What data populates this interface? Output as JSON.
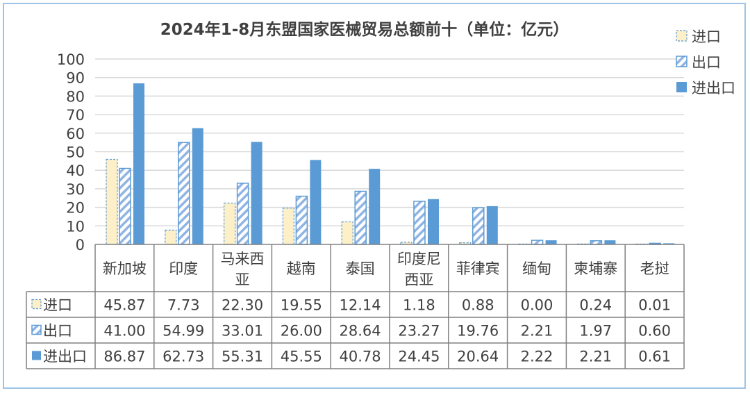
{
  "chart_data": {
    "type": "bar",
    "title": "2024年1-8月东盟国家医械贸易总额前十（单位：亿元）",
    "categories": [
      "新加坡",
      "印度",
      "马来西亚",
      "越南",
      "泰国",
      "印度尼西亚",
      "菲律宾",
      "缅甸",
      "柬埔寨",
      "老挝"
    ],
    "category_lines": [
      [
        "新加坡"
      ],
      [
        "印度"
      ],
      [
        "马来西",
        "亚"
      ],
      [
        "越南"
      ],
      [
        "泰国"
      ],
      [
        "印度尼",
        "西亚"
      ],
      [
        "菲律宾"
      ],
      [
        "缅甸"
      ],
      [
        "柬埔寨"
      ],
      [
        "老挝"
      ]
    ],
    "series": [
      {
        "name": "进口",
        "style": "dashed-outline",
        "color": "#fdf0c8",
        "values": [
          45.87,
          7.73,
          22.3,
          19.55,
          12.14,
          1.18,
          0.88,
          0.0,
          0.24,
          0.01
        ],
        "labels": [
          "45.87",
          "7.73",
          "22.30",
          "19.55",
          "12.14",
          "1.18",
          "0.88",
          "0.00",
          "0.24",
          "0.01"
        ]
      },
      {
        "name": "出口",
        "style": "hatched",
        "color": "#8fb4e3",
        "values": [
          41.0,
          54.99,
          33.01,
          26.0,
          28.64,
          23.27,
          19.76,
          2.21,
          1.97,
          0.6
        ],
        "labels": [
          "41.00",
          "54.99",
          "33.01",
          "26.00",
          "28.64",
          "23.27",
          "19.76",
          "2.21",
          "1.97",
          "0.60"
        ]
      },
      {
        "name": "进出口",
        "style": "solid",
        "color": "#5b9bd5",
        "values": [
          86.87,
          62.73,
          55.31,
          45.55,
          40.78,
          24.45,
          20.64,
          2.22,
          2.21,
          0.61
        ],
        "labels": [
          "86.87",
          "62.73",
          "55.31",
          "45.55",
          "40.78",
          "24.45",
          "20.64",
          "2.22",
          "2.21",
          "0.61"
        ]
      }
    ],
    "ylim": [
      0,
      100
    ],
    "yticks": [
      "0",
      "10",
      "20",
      "30",
      "40",
      "50",
      "60",
      "70",
      "80",
      "90",
      "100"
    ],
    "grid": true,
    "legend": "top-right",
    "data_table": true
  }
}
